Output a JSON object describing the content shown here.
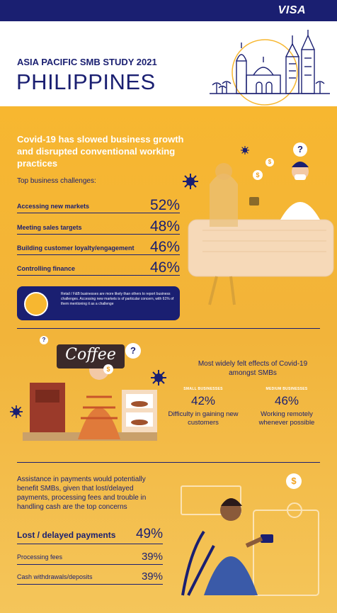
{
  "brand": "VISA",
  "header": {
    "kicker": "ASIA PACIFIC SMB STUDY 2021",
    "country": "PHILIPPINES"
  },
  "section1": {
    "title": "Covid-19 has slowed business growth and disrupted conventional working practices",
    "subtitle": "Top business challenges:",
    "challenges": [
      {
        "label": "Accessing new markets",
        "value": "52%"
      },
      {
        "label": "Meeting sales targets",
        "value": "48%"
      },
      {
        "label": "Building customer loyalty/engagement",
        "value": "46%"
      },
      {
        "label": "Controlling finance",
        "value": "46%"
      }
    ],
    "note": "Retail / F&B businesses are more likely than others to report business challenges. Accessing new markets is of particular concern, with 61% of them mentioning it as a challenge"
  },
  "section2": {
    "sign": "Coffee",
    "title": "Most widely felt effects of Covid-19 amongst SMBs",
    "small": {
      "kicker": "SMALL BUSINESSES",
      "value": "42%",
      "desc": "Difficulty in gaining new customers"
    },
    "medium": {
      "kicker": "MEDIUM BUSINESSES",
      "value": "46%",
      "desc": "Working remotely whenever possible"
    }
  },
  "section3": {
    "title": "Assistance in payments would potentially benefit SMBs, given that lost/delayed payments, processing fees and trouble in handling cash are the top concerns",
    "concerns": [
      {
        "label": "Lost / delayed payments",
        "value": "49%"
      },
      {
        "label": "Processing fees",
        "value": "39%"
      },
      {
        "label": "Cash withdrawals/deposits",
        "value": "39%"
      }
    ]
  },
  "icons": {
    "question": "?",
    "dollar": "$"
  },
  "colors": {
    "navy": "#1a1f71",
    "gold": "#f7b730",
    "white": "#ffffff"
  }
}
